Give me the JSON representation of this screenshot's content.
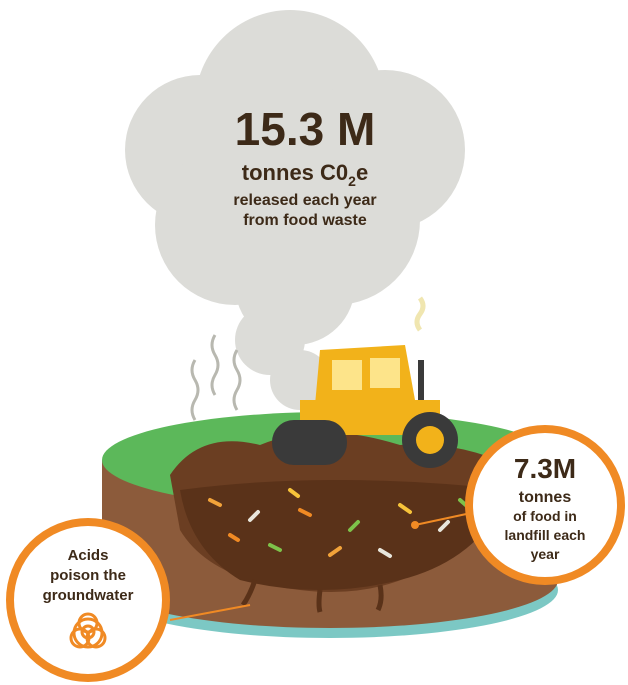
{
  "cloud": {
    "figure": "15.3 M",
    "line1": "tonnes C0",
    "line1_sub": "2",
    "line1_end": "e",
    "line2": "released each year",
    "line3": "from food waste"
  },
  "landfill_callout": {
    "figure": "7.3M",
    "lines": [
      "tonnes",
      "of food in",
      "landfill each",
      "year"
    ]
  },
  "groundwater_callout": {
    "lines": [
      "Acids",
      "poison the",
      "groundwater"
    ]
  }
}
